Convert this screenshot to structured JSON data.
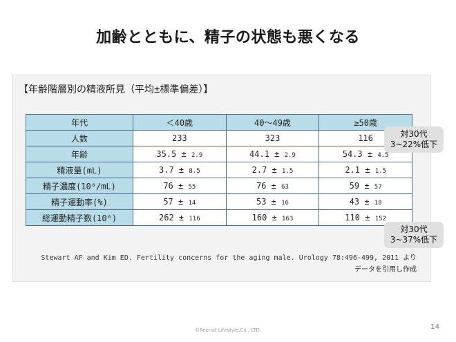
{
  "title": "加齢とともに、精子の状態も悪くなる",
  "panel": {
    "heading": "【年齢階層別の精液所見（平均±標準偏差）】",
    "table": {
      "header": [
        "年代",
        "＜40歳",
        "40〜49歳",
        "≥50歳"
      ],
      "rows": [
        {
          "label": "人数",
          "cells": [
            {
              "mean": "233",
              "sd": ""
            },
            {
              "mean": "323",
              "sd": ""
            },
            {
              "mean": "116",
              "sd": ""
            }
          ]
        },
        {
          "label": "年齢",
          "cells": [
            {
              "mean": "35.5",
              "sd": "2.9"
            },
            {
              "mean": "44.1",
              "sd": "2.9"
            },
            {
              "mean": "54.3",
              "sd": "4.5"
            }
          ]
        },
        {
          "label": "精液量(mL)",
          "cells": [
            {
              "mean": "3.7",
              "sd": "8.5"
            },
            {
              "mean": "2.7",
              "sd": "1.5"
            },
            {
              "mean": "2.1",
              "sd": "1.5"
            }
          ]
        },
        {
          "label": "精子濃度(10⁶/mL)",
          "cells": [
            {
              "mean": "76",
              "sd": "55"
            },
            {
              "mean": "76",
              "sd": "63"
            },
            {
              "mean": "59",
              "sd": "57"
            }
          ]
        },
        {
          "label": "精子運動率(%)",
          "cells": [
            {
              "mean": "57",
              "sd": "14"
            },
            {
              "mean": "53",
              "sd": "16"
            },
            {
              "mean": "43",
              "sd": "18"
            }
          ]
        },
        {
          "label": "総運動精子数(10⁶)",
          "cells": [
            {
              "mean": "262",
              "sd": "116"
            },
            {
              "mean": "160",
              "sd": "163"
            },
            {
              "mean": "110",
              "sd": "152"
            }
          ]
        }
      ]
    },
    "citation_line1": "Stewart AF and Kim ED. Fertility concerns for the aging male. Urology 78:496-499, 2011 より",
    "citation_line2": "データを引用し作成"
  },
  "callouts": [
    {
      "line1": "対30代",
      "line2": "3~22%低下"
    },
    {
      "line1": "対30代",
      "line2": "3~37%低下"
    }
  ],
  "footer": {
    "copyright": "©Recruit Lifestyle.Co., LTD.",
    "page_number": "14"
  }
}
